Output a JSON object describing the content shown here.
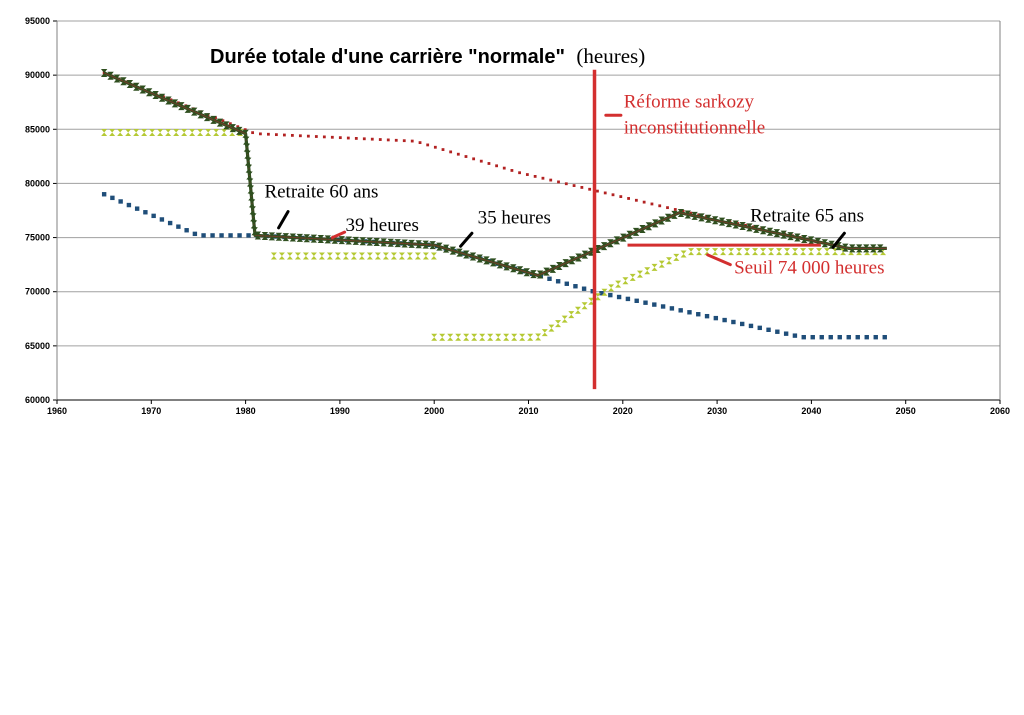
{
  "chart_data": {
    "type": "line",
    "title": "Durée totale d'une carrière \"normale\"",
    "title_unit": "(heures)",
    "xlim": [
      1960,
      2060
    ],
    "ylim": [
      60000,
      95000
    ],
    "x_ticks": [
      1960,
      1970,
      1980,
      1990,
      2000,
      2010,
      2020,
      2030,
      2040,
      2050,
      2060
    ],
    "y_ticks": [
      60000,
      65000,
      70000,
      75000,
      80000,
      85000,
      90000,
      95000
    ],
    "grid": true,
    "legend": "none",
    "series": [
      {
        "style": "square-dots",
        "color": "#1f4e79",
        "points": [
          [
            1965,
            79000
          ],
          [
            1975,
            75200
          ],
          [
            1981,
            75200
          ],
          [
            2000,
            74300
          ],
          [
            2011,
            71500
          ],
          [
            2017,
            70000
          ],
          [
            2025,
            68500
          ],
          [
            2039,
            65800
          ],
          [
            2048,
            65800
          ]
        ]
      },
      {
        "style": "small-dots",
        "color": "#b22222",
        "points": [
          [
            1965,
            90200
          ],
          [
            1981,
            84600
          ],
          [
            1998,
            83900
          ],
          [
            2009,
            81000
          ],
          [
            2027,
            77300
          ],
          [
            2044,
            74000
          ],
          [
            2048,
            74000
          ]
        ]
      },
      {
        "style": "triangles",
        "color": "#b5c934",
        "points": [
          [
            1965,
            84700
          ],
          [
            1980,
            84700
          ]
        ]
      },
      {
        "style": "triangles",
        "color": "#b5c934",
        "points": [
          [
            1983,
            73300
          ],
          [
            2000,
            73300
          ]
        ]
      },
      {
        "style": "triangles",
        "color": "#b5c934",
        "points": [
          [
            2000,
            65800
          ],
          [
            2011,
            65800
          ],
          [
            2019,
            70500
          ],
          [
            2027,
            73700
          ],
          [
            2048,
            73700
          ]
        ]
      },
      {
        "style": "thick-triangle-line",
        "color": "#2f4f1f",
        "points": [
          [
            1965,
            90200
          ],
          [
            1980,
            84600
          ],
          [
            1981,
            75200
          ],
          [
            2000,
            74300
          ],
          [
            2011,
            71500
          ],
          [
            2026,
            77300
          ],
          [
            2044,
            74000
          ],
          [
            2048,
            74000
          ]
        ]
      }
    ],
    "reference_lines": [
      {
        "label": "Réforme sarkozy",
        "axis": "x",
        "value": 2017,
        "from": 61000,
        "to": 90500,
        "color": "#d32f2f"
      },
      {
        "label": "Seuil 74 000 heures",
        "axis": "y",
        "value": 74300,
        "from": 2020.5,
        "to": 2041,
        "color": "#d32f2f"
      }
    ],
    "annotations": [
      {
        "id": "retraite-60",
        "text": "Retraite 60 ans",
        "color": "#000000",
        "x": 1982,
        "y": 78700,
        "leader": [
          [
            1984.5,
            77400
          ],
          [
            1983.5,
            75900
          ]
        ],
        "leader_color": "#000000"
      },
      {
        "id": "heures-39",
        "text": "39 heures",
        "color": "#000000",
        "x": 1990.6,
        "y": 75600,
        "leader": [
          [
            1990.5,
            75500
          ],
          [
            1989.2,
            75000
          ]
        ],
        "leader_color": "#d32f2f"
      },
      {
        "id": "heures-35",
        "text": "35 heures",
        "color": "#000000",
        "x": 2004.6,
        "y": 76300,
        "leader": [
          [
            2004,
            75400
          ],
          [
            2002.8,
            74200
          ]
        ],
        "leader_color": "#000000"
      },
      {
        "id": "reforme-l1",
        "text": "Réforme sarkozy",
        "color": "#d32f2f",
        "x": 2020.1,
        "y": 87000,
        "leader": [
          [
            2018.2,
            86300
          ],
          [
            2019.8,
            86300
          ]
        ],
        "leader_color": "#d32f2f"
      },
      {
        "id": "reforme-l2",
        "text": "inconstitutionnelle",
        "color": "#d32f2f",
        "x": 2020.1,
        "y": 84600,
        "leader": null,
        "leader_color": null
      },
      {
        "id": "retraite-65",
        "text": "Retraite 65 ans",
        "color": "#000000",
        "x": 2033.5,
        "y": 76500,
        "leader": [
          [
            2043.5,
            75400
          ],
          [
            2042.3,
            74100
          ]
        ],
        "leader_color": "#000000"
      },
      {
        "id": "seuil",
        "text": "Seuil 74 000 heures",
        "color": "#d32f2f",
        "x": 2031.8,
        "y": 71700,
        "leader": [
          [
            2029,
            73400
          ],
          [
            2031.4,
            72500
          ]
        ],
        "leader_color": "#d32f2f"
      }
    ]
  }
}
